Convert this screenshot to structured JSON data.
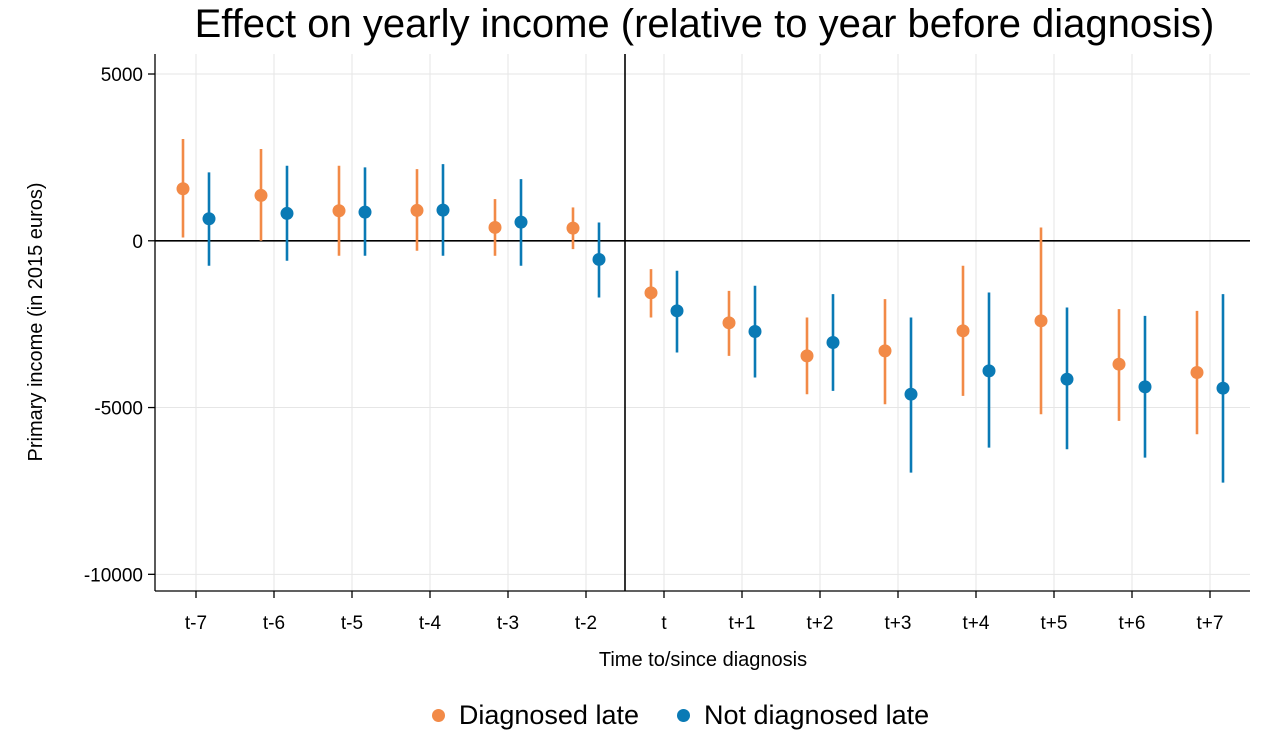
{
  "chart_data": {
    "type": "scatter",
    "title": "Effect on yearly income (relative to year before diagnosis)",
    "xlabel": "Time to/since diagnosis",
    "ylabel": "Primary income (in 2015 euros)",
    "categories": [
      "t-7",
      "t-6",
      "t-5",
      "t-4",
      "t-3",
      "t-2",
      "t",
      "t+1",
      "t+2",
      "t+3",
      "t+4",
      "t+5",
      "t+6",
      "t+7"
    ],
    "yticks": [
      5000,
      0,
      -5000,
      -10000
    ],
    "ylim": [
      -10500,
      5600
    ],
    "grid": true,
    "legend_position": "bottom",
    "reference_lines": {
      "horizontal": 0,
      "vertical_between": [
        "t-2",
        "t"
      ]
    },
    "series": [
      {
        "name": "Diagnosed late",
        "color": "#f28a47",
        "values": [
          1560,
          1360,
          900,
          910,
          400,
          380,
          -1560,
          -2460,
          -3450,
          -3300,
          -2700,
          -2400,
          -3700,
          -3950
        ],
        "ci_low": [
          100,
          0,
          -450,
          -300,
          -450,
          -250,
          -2300,
          -3450,
          -4600,
          -4900,
          -4650,
          -5200,
          -5400,
          -5800
        ],
        "ci_high": [
          3050,
          2750,
          2250,
          2150,
          1250,
          1000,
          -850,
          -1500,
          -2300,
          -1750,
          -750,
          400,
          -2050,
          -2100
        ]
      },
      {
        "name": "Not diagnosed late",
        "color": "#0a7ab5",
        "values": [
          660,
          820,
          860,
          920,
          560,
          -560,
          -2100,
          -2720,
          -3050,
          -4600,
          -3900,
          -4150,
          -4380,
          -4420
        ],
        "ci_low": [
          -750,
          -600,
          -450,
          -450,
          -750,
          -1700,
          -3350,
          -4100,
          -4500,
          -6950,
          -6200,
          -6250,
          -6500,
          -7250
        ],
        "ci_high": [
          2050,
          2250,
          2200,
          2300,
          1850,
          550,
          -900,
          -1350,
          -1600,
          -2300,
          -1550,
          -2000,
          -2250,
          -1600
        ]
      }
    ]
  }
}
